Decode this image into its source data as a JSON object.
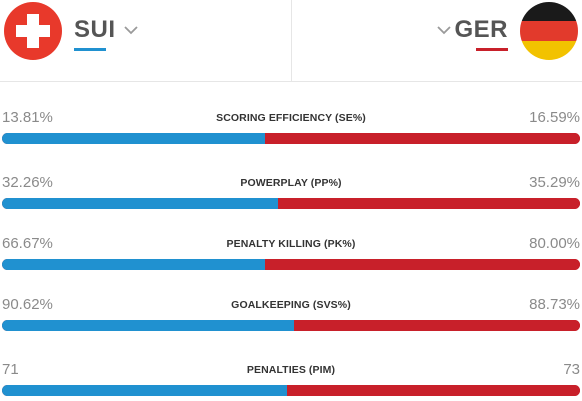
{
  "colors": {
    "home": "#2091d0",
    "away": "#c8202a",
    "divider": "#e6e6e6"
  },
  "home": {
    "code": "SUI",
    "flag_icon": "switzerland-flag-icon"
  },
  "away": {
    "code": "GER",
    "flag_icon": "germany-flag-icon"
  },
  "stats": [
    {
      "label": "SCORING EFFICIENCY (SE%)",
      "home": "13.81%",
      "away": "16.59%",
      "home_share": 0.455
    },
    {
      "label": "POWERPLAY (PP%)",
      "home": "32.26%",
      "away": "35.29%",
      "home_share": 0.478
    },
    {
      "label": "PENALTY KILLING (PK%)",
      "home": "66.67%",
      "away": "80.00%",
      "home_share": 0.455
    },
    {
      "label": "GOALKEEPING (SVS%)",
      "home": "90.62%",
      "away": "88.73%",
      "home_share": 0.505
    },
    {
      "label": "PENALTIES (PIM)",
      "home": "71",
      "away": "73",
      "home_share": 0.493
    }
  ]
}
